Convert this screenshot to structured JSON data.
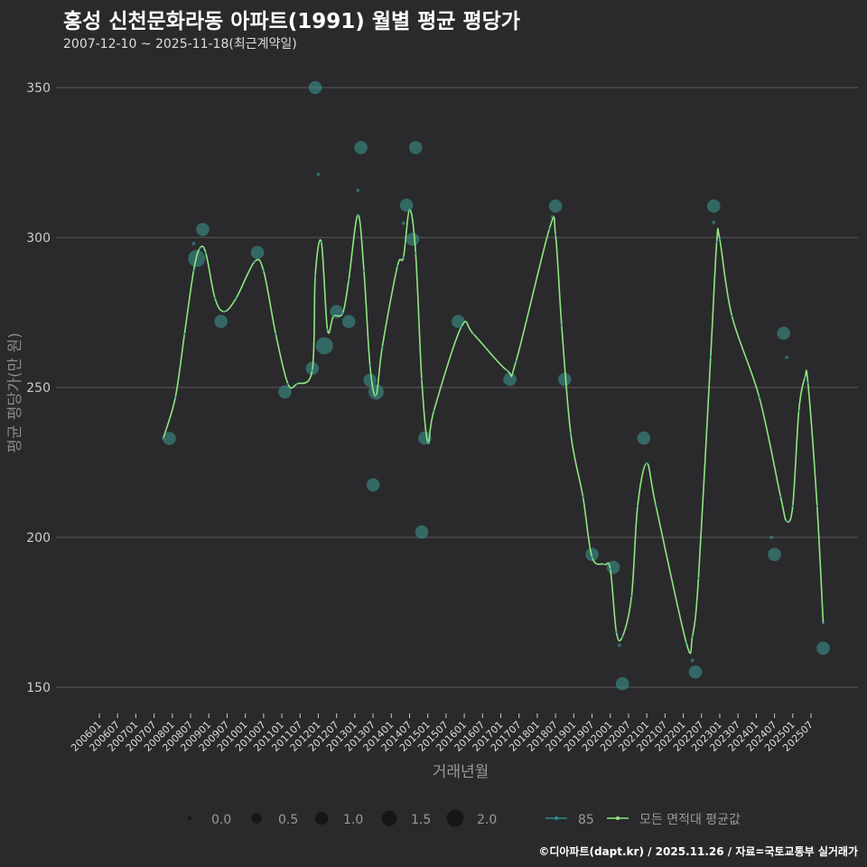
{
  "chart_data": {
    "type": "scatter+line",
    "title": "홍성 신천문화라동 아파트(1991) 월별 평균 평당가",
    "subtitle": "2007-12-10 ~ 2025-11-18(최근계약일)",
    "xlabel": "거래년월",
    "ylabel": "평균 평당가(만 원)",
    "caption": "©디아파트(dapt.kr) / 2025.11.26 / 자료=국토교통부 실거래가",
    "ylim": [
      142,
      357
    ],
    "yticks": [
      150,
      200,
      250,
      300,
      350
    ],
    "xticks": [
      "200601",
      "200607",
      "200701",
      "200707",
      "200801",
      "200807",
      "200901",
      "200907",
      "201001",
      "201007",
      "201101",
      "201107",
      "201201",
      "201207",
      "201301",
      "201307",
      "201401",
      "201407",
      "201501",
      "201507",
      "201601",
      "201607",
      "201701",
      "201707",
      "201801",
      "201807",
      "201901",
      "201907",
      "202001",
      "202007",
      "202101",
      "202107",
      "202201",
      "202207",
      "202301",
      "202307",
      "202401",
      "202407",
      "202501",
      "202507"
    ],
    "legend_size": {
      "labels": [
        "0.0",
        "0.5",
        "1.0",
        "1.5",
        "2.0"
      ],
      "values": [
        0,
        0.5,
        1,
        1.5,
        2
      ]
    },
    "legend_series": [
      {
        "name": "85",
        "color": "#2a8c8c"
      },
      {
        "name": "모든 면적대 평균값",
        "color": "#8ee67e"
      }
    ],
    "colors": {
      "points": "#3a9a96",
      "line": "#8ee67e",
      "grid": "#5a5a5c"
    },
    "points": [
      [
        "2007-12",
        233,
        1
      ],
      [
        "2008-09",
        293,
        2
      ],
      [
        "2008-11",
        302.7,
        1
      ],
      [
        "2009-05",
        272,
        1
      ],
      [
        "2010-05",
        295,
        1
      ],
      [
        "2011-02",
        248.5,
        1
      ],
      [
        "2011-11",
        256.3,
        1
      ],
      [
        "2011-12",
        350,
        1
      ],
      [
        "2012-03",
        263.9,
        2
      ],
      [
        "2012-07",
        275.3,
        1
      ],
      [
        "2012-11",
        272,
        1
      ],
      [
        "2013-03",
        330,
        1
      ],
      [
        "2013-06",
        252.4,
        1
      ],
      [
        "2013-07",
        217.5,
        1
      ],
      [
        "2013-08",
        248.5,
        1.5
      ],
      [
        "2014-06",
        310.8,
        1
      ],
      [
        "2014-08",
        299.4,
        1
      ],
      [
        "2014-09",
        330,
        1
      ],
      [
        "2014-11",
        201.8,
        1
      ],
      [
        "2014-12",
        233.1,
        1
      ],
      [
        "2015-11",
        272,
        1
      ],
      [
        "2017-04",
        252.7,
        1
      ],
      [
        "2018-07",
        310.5,
        1
      ],
      [
        "2018-10",
        252.7,
        1
      ],
      [
        "2019-07",
        194.3,
        1
      ],
      [
        "2020-02",
        190,
        1
      ],
      [
        "2020-05",
        151.2,
        1
      ],
      [
        "2020-12",
        233.1,
        1
      ],
      [
        "2022-05",
        155.1,
        1
      ],
      [
        "2022-11",
        310.5,
        1
      ],
      [
        "2024-07",
        194.3,
        1
      ],
      [
        "2024-10",
        268.1,
        1
      ],
      [
        "2025-11",
        163,
        1
      ],
      [
        "2012-01",
        321,
        0.05
      ],
      [
        "2013-02",
        315.7,
        0.05
      ],
      [
        "2014-05",
        304.8,
        0.05
      ],
      [
        "2018-06",
        306.9,
        0.05
      ],
      [
        "2022-11",
        305,
        0.05
      ],
      [
        "2024-11",
        260,
        0.05
      ],
      [
        "2024-06",
        200,
        0.05
      ],
      [
        "2020-04",
        164,
        0.05
      ],
      [
        "2022-04",
        159,
        0.05
      ],
      [
        "2008-08",
        298,
        0.05
      ]
    ],
    "average_line": [
      [
        "2007-10",
        233
      ],
      [
        "2008-02",
        246.7
      ],
      [
        "2008-05",
        267.8
      ],
      [
        "2008-08",
        288.9
      ],
      [
        "2008-10",
        296.4
      ],
      [
        "2008-12",
        294.9
      ],
      [
        "2009-03",
        279.8
      ],
      [
        "2009-06",
        275.3
      ],
      [
        "2009-10",
        279.8
      ],
      [
        "2010-04",
        291.9
      ],
      [
        "2010-07",
        288.9
      ],
      [
        "2010-11",
        267.8
      ],
      [
        "2011-03",
        251.2
      ],
      [
        "2011-06",
        251.2
      ],
      [
        "2011-11",
        255.7
      ],
      [
        "2011-12",
        287.3
      ],
      [
        "2012-02",
        298.5
      ],
      [
        "2012-04",
        269.3
      ],
      [
        "2012-06",
        273.8
      ],
      [
        "2012-09",
        274.7
      ],
      [
        "2012-11",
        285.8
      ],
      [
        "2013-02",
        307.5
      ],
      [
        "2013-04",
        288.9
      ],
      [
        "2013-06",
        257.2
      ],
      [
        "2013-08",
        247.3
      ],
      [
        "2013-10",
        263.3
      ],
      [
        "2014-03",
        290.4
      ],
      [
        "2014-05",
        293.4
      ],
      [
        "2014-07",
        309.3
      ],
      [
        "2014-09",
        294.9
      ],
      [
        "2014-11",
        252.7
      ],
      [
        "2015-01",
        231.6
      ],
      [
        "2015-03",
        242.2
      ],
      [
        "2015-12",
        270.2
      ],
      [
        "2016-04",
        267.8
      ],
      [
        "2017-03",
        255.7
      ],
      [
        "2017-06",
        258.7
      ],
      [
        "2018-05",
        303
      ],
      [
        "2018-07",
        300.9
      ],
      [
        "2018-09",
        270.8
      ],
      [
        "2018-12",
        234.6
      ],
      [
        "2019-04",
        213.6
      ],
      [
        "2019-07",
        193.4
      ],
      [
        "2019-11",
        191
      ],
      [
        "2020-01",
        189.5
      ],
      [
        "2020-03",
        168.4
      ],
      [
        "2020-05",
        166.9
      ],
      [
        "2020-08",
        180.4
      ],
      [
        "2020-10",
        210.5
      ],
      [
        "2021-01",
        224.7
      ],
      [
        "2021-04",
        210.5
      ],
      [
        "2022-02",
        164.8
      ],
      [
        "2022-04",
        166.9
      ],
      [
        "2022-06",
        186.4
      ],
      [
        "2022-10",
        260.2
      ],
      [
        "2022-12",
        298.5
      ],
      [
        "2023-01",
        299.4
      ],
      [
        "2023-05",
        273.8
      ],
      [
        "2024-02",
        246.7
      ],
      [
        "2024-09",
        213.6
      ],
      [
        "2024-11",
        205.4
      ],
      [
        "2025-01",
        210.5
      ],
      [
        "2025-03",
        242.2
      ],
      [
        "2025-05",
        253.3
      ],
      [
        "2025-06",
        251.5
      ],
      [
        "2025-09",
        210.5
      ],
      [
        "2025-11",
        171.4
      ]
    ]
  }
}
